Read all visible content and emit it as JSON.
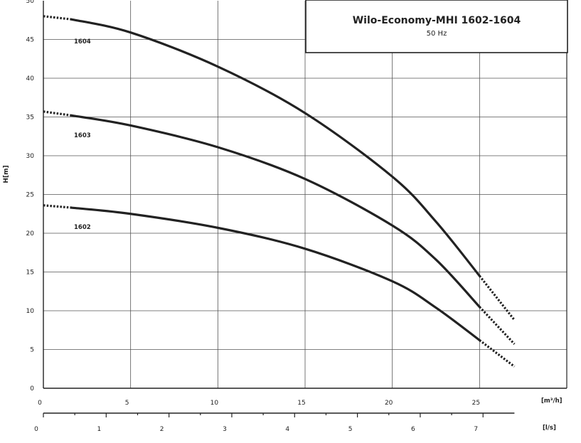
{
  "chart_data": {
    "type": "line",
    "title": "Wilo-Economy-MHI 1602-1604",
    "subtitle": "50 Hz",
    "ylabel": "H[m]",
    "xlabel": "[m³/h]",
    "x2label": "[l/s]",
    "xlim": [
      0,
      30
    ],
    "ylim": [
      0,
      50
    ],
    "x_ticks": [
      "0",
      "5",
      "10",
      "15",
      "20",
      "25"
    ],
    "x2_ticks": [
      "0",
      "1",
      "2",
      "3",
      "4",
      "5",
      "6",
      "7"
    ],
    "y_ticks": [
      "0",
      "5",
      "10",
      "15",
      "20",
      "25",
      "30",
      "35",
      "40",
      "45",
      "50"
    ],
    "grid": true,
    "series": [
      {
        "name": "1604",
        "x": [
          1.6,
          5,
          10,
          15,
          20,
          22.5,
          25
        ],
        "y": [
          47.6,
          45.9,
          41.5,
          35.5,
          27.3,
          21.5,
          14.5
        ],
        "start_dotted": {
          "x": [
            0,
            1.6
          ],
          "y": [
            48.0,
            47.6
          ]
        },
        "end_dotted": {
          "x": [
            25,
            27
          ],
          "y": [
            14.5,
            8.8
          ]
        }
      },
      {
        "name": "1603",
        "x": [
          1.6,
          5,
          10,
          15,
          20,
          22.5,
          25
        ],
        "y": [
          35.2,
          33.9,
          31.1,
          27.0,
          21.0,
          16.6,
          10.5
        ],
        "start_dotted": {
          "x": [
            0,
            1.6
          ],
          "y": [
            35.7,
            35.2
          ]
        },
        "end_dotted": {
          "x": [
            25,
            27
          ],
          "y": [
            10.5,
            5.7
          ]
        }
      },
      {
        "name": "1602",
        "x": [
          1.6,
          5,
          10,
          15,
          20,
          22.5,
          25
        ],
        "y": [
          23.3,
          22.5,
          20.7,
          18.0,
          13.8,
          10.4,
          6.2
        ],
        "start_dotted": {
          "x": [
            0,
            1.6
          ],
          "y": [
            23.6,
            23.3
          ]
        },
        "end_dotted": {
          "x": [
            25,
            27
          ],
          "y": [
            6.2,
            2.8
          ]
        }
      }
    ]
  }
}
